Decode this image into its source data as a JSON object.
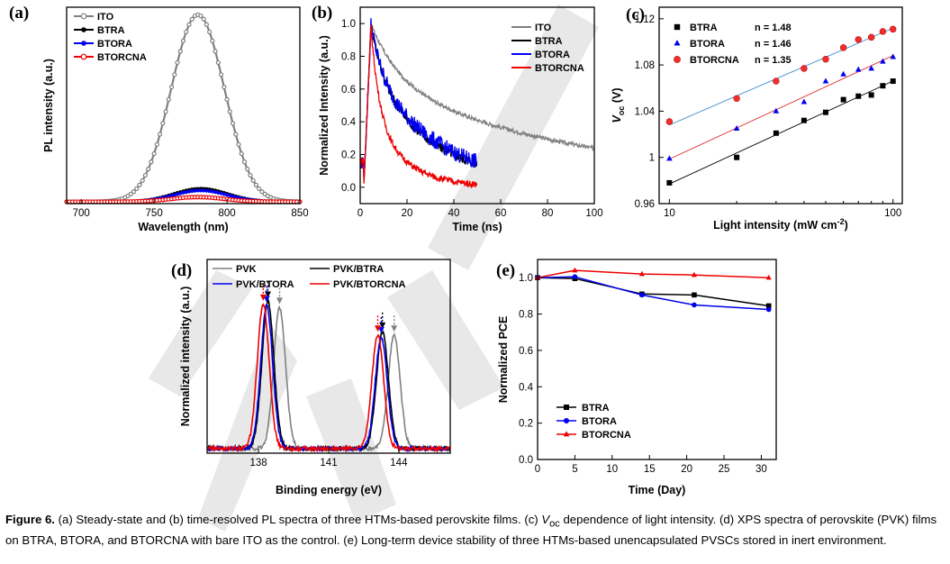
{
  "colors": {
    "ITO": "#808080",
    "PVK": "#808080",
    "BTRA": "#000000",
    "BTORA": "#0000ee",
    "BTORCNA": "#ee0000"
  },
  "caption": {
    "fig_label": "Figure 6.",
    "part1": " (a) Steady-state and  (b) time-resolved PL spectra of three HTMs-based perovskite films. (c) ",
    "voc_main": "V",
    "voc_sub": "oc",
    "part2": " dependence of light intensity. (d) XPS spectra of perovskite (PVK) films on BTRA, BTORA, and BTORCNA with bare ITO as the control. (e) Long-term device stability of three HTMs-based unencapsulated PVSCs stored in inert environment."
  },
  "chart_data": [
    {
      "id": "a",
      "panel_label": "(a)",
      "type": "line",
      "xlabel": "Wavelength (nm)",
      "ylabel": "PL intensity (a.u.)",
      "xlim": [
        690,
        850
      ],
      "ylim": [
        0,
        1.05
      ],
      "xticks": [
        700,
        750,
        800,
        850
      ],
      "yticks": [],
      "grid": false,
      "legend_position": "top-left",
      "series": [
        {
          "name": "ITO",
          "peak": 780,
          "width": 27,
          "amp": 1.0,
          "base": 0.01,
          "marker": "circle-open"
        },
        {
          "name": "BTRA",
          "peak": 782,
          "width": 27,
          "amp": 0.07,
          "base": 0.01,
          "marker": "circle"
        },
        {
          "name": "BTORA",
          "peak": 782,
          "width": 27,
          "amp": 0.06,
          "base": 0.01,
          "marker": "circle"
        },
        {
          "name": "BTORCNA",
          "peak": 780,
          "width": 27,
          "amp": 0.025,
          "base": 0.01,
          "marker": "circle-open"
        }
      ]
    },
    {
      "id": "b",
      "panel_label": "(b)",
      "type": "line",
      "xlabel": "Time (ns)",
      "ylabel": "Normalized Intensity (a.u.)",
      "xlim": [
        0,
        100
      ],
      "ylim": [
        -0.1,
        1.1
      ],
      "xticks": [
        0,
        20,
        40,
        60,
        80,
        100
      ],
      "yticks": [
        0.0,
        0.2,
        0.4,
        0.6,
        0.8,
        1.0
      ],
      "grid": false,
      "legend_position": "top-right",
      "series": [
        {
          "name": "ITO",
          "t_end": 100,
          "decays": [
            [
              0.35,
              12
            ],
            [
              0.65,
              95
            ]
          ],
          "noise": 0.012
        },
        {
          "name": "BTRA",
          "t_end": 50,
          "decays": [
            [
              0.35,
              6
            ],
            [
              0.65,
              30
            ]
          ],
          "noise": 0.03
        },
        {
          "name": "BTORA",
          "t_end": 50,
          "decays": [
            [
              0.3,
              5
            ],
            [
              0.7,
              30
            ]
          ],
          "noise": 0.05
        },
        {
          "name": "BTORCNA",
          "t_end": 50,
          "decays": [
            [
              0.55,
              3.5
            ],
            [
              0.45,
              14
            ]
          ],
          "noise": 0.02
        }
      ]
    },
    {
      "id": "c",
      "panel_label": "(c)",
      "type": "scatter",
      "xlabel_main": "Light intensity (mW cm",
      "xlabel_sup": "-2",
      "xlabel_end": ")",
      "ylabel_main": "V",
      "ylabel_sub": "oc",
      "ylabel_unit": " (V)",
      "xscale": "log",
      "xlim": [
        9,
        110
      ],
      "ylim": [
        0.96,
        1.13
      ],
      "xticks": [
        10,
        100
      ],
      "yticks": [
        0.96,
        1,
        1.04,
        1.08,
        1.12
      ],
      "ytick_labels": [
        "0.96",
        "1",
        "1.04",
        "1.08",
        "1.12"
      ],
      "grid": false,
      "legend_position": "top-left",
      "series": [
        {
          "name": "BTRA",
          "n_label": "n = 1.48",
          "marker": "square",
          "x": [
            10,
            20,
            30,
            40,
            50,
            60,
            70,
            80,
            90,
            100
          ],
          "y": [
            0.978,
            1.0,
            1.021,
            1.032,
            1.039,
            1.05,
            1.053,
            1.054,
            1.062,
            1.066
          ]
        },
        {
          "name": "BTORA",
          "n_label": "n = 1.46",
          "marker": "triangle",
          "x": [
            10,
            20,
            30,
            40,
            50,
            60,
            70,
            80,
            90,
            100
          ],
          "y": [
            0.999,
            1.025,
            1.04,
            1.048,
            1.066,
            1.072,
            1.076,
            1.077,
            1.083,
            1.087
          ]
        },
        {
          "name": "BTORCNA",
          "n_label": "n = 1.35",
          "marker": "circle",
          "x": [
            10,
            20,
            30,
            40,
            50,
            60,
            70,
            80,
            90,
            100
          ],
          "y": [
            1.031,
            1.051,
            1.066,
            1.077,
            1.085,
            1.095,
            1.102,
            1.104,
            1.109,
            1.111
          ]
        }
      ]
    },
    {
      "id": "d",
      "panel_label": "(d)",
      "type": "line",
      "xlabel": "Binding energy (eV)",
      "ylabel": "Normalized intensity (a.u.)",
      "xlim": [
        135.8,
        146.2
      ],
      "ylim": [
        0,
        1.25
      ],
      "xticks": [
        138,
        141,
        144
      ],
      "yticks": [],
      "grid": false,
      "legend_position": "top",
      "series": [
        {
          "name": "PVK",
          "peaks": [
            138.9,
            143.8
          ],
          "amps": [
            0.91,
            0.73
          ]
        },
        {
          "name": "PVK/BTRA",
          "peaks": [
            138.4,
            143.3
          ],
          "amps": [
            0.95,
            0.75
          ]
        },
        {
          "name": "PVK/BTORA",
          "peaks": [
            138.35,
            143.25
          ],
          "amps": [
            0.92,
            0.72
          ]
        },
        {
          "name": "PVK/BTORCNA",
          "peaks": [
            138.2,
            143.1
          ],
          "amps": [
            0.93,
            0.73
          ]
        }
      ]
    },
    {
      "id": "e",
      "panel_label": "(e)",
      "type": "line",
      "xlabel": "Time (Day)",
      "ylabel": "Normalized PCE",
      "xlim": [
        0,
        32
      ],
      "ylim": [
        0,
        1.1
      ],
      "xticks": [
        0,
        5,
        10,
        15,
        20,
        25,
        30
      ],
      "yticks": [
        0.0,
        0.2,
        0.4,
        0.6,
        0.8,
        1.0
      ],
      "grid": false,
      "legend_position": "bottom-left",
      "series": [
        {
          "name": "BTRA",
          "marker": "square",
          "x": [
            0,
            5,
            14,
            21,
            31
          ],
          "y": [
            1.0,
            0.995,
            0.91,
            0.905,
            0.845
          ]
        },
        {
          "name": "BTORA",
          "marker": "circle",
          "x": [
            0,
            5,
            14,
            21,
            31
          ],
          "y": [
            1.0,
            1.005,
            0.905,
            0.85,
            0.825
          ]
        },
        {
          "name": "BTORCNA",
          "marker": "triangle",
          "x": [
            0,
            5,
            14,
            21,
            31
          ],
          "y": [
            1.0,
            1.04,
            1.02,
            1.015,
            1.0
          ]
        }
      ]
    }
  ]
}
